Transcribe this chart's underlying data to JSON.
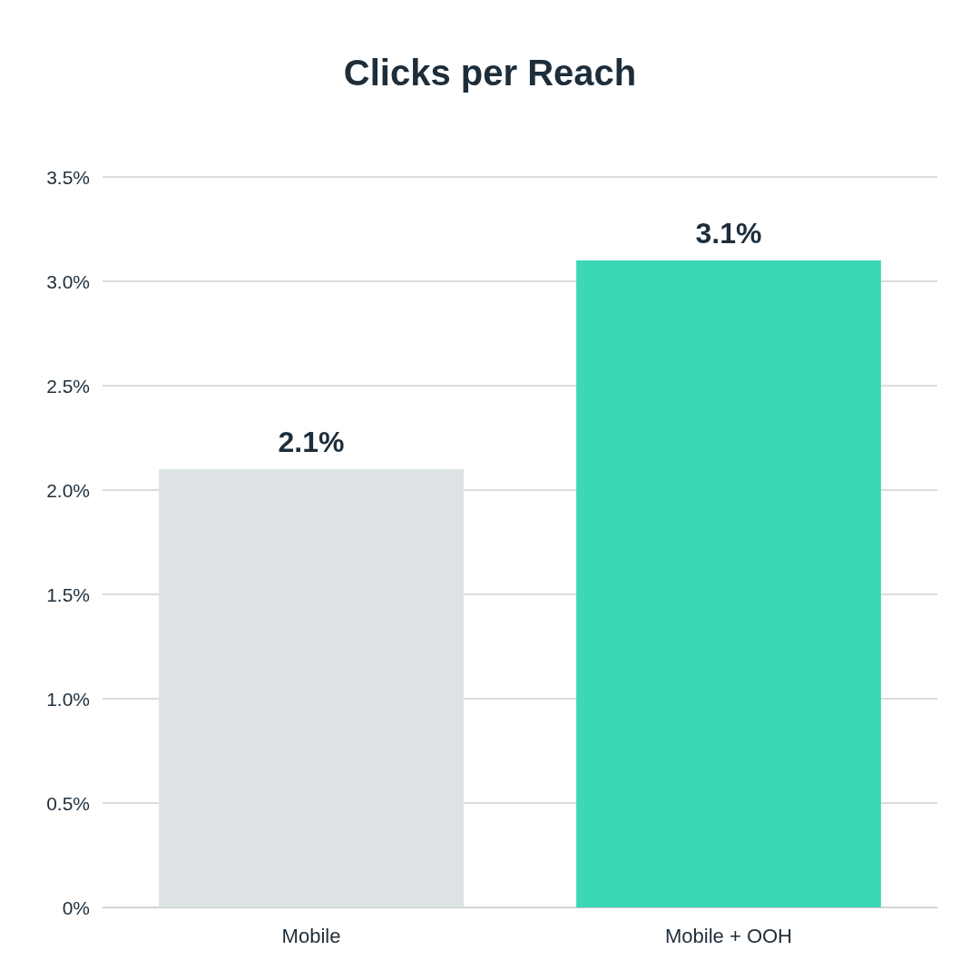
{
  "chart_data": {
    "type": "bar",
    "title": "Clicks per Reach",
    "categories": [
      "Mobile",
      "Mobile + OOH"
    ],
    "values": [
      2.1,
      3.1
    ],
    "colors": [
      "#dde3e5",
      "#3ad8b6"
    ],
    "value_labels": [
      "2.1%",
      "3.1%"
    ],
    "ylim": [
      0,
      3.5
    ],
    "yticks": [
      {
        "value": 0,
        "label": "0%"
      },
      {
        "value": 0.5,
        "label": "0.5%"
      },
      {
        "value": 1,
        "label": "1.0%"
      },
      {
        "value": 1.5,
        "label": "1.5%"
      },
      {
        "value": 2,
        "label": "2.0%"
      },
      {
        "value": 2.5,
        "label": "2.5%"
      },
      {
        "value": 3,
        "label": "3.0%"
      },
      {
        "value": 3.5,
        "label": "3.5%"
      }
    ],
    "grid": "y"
  }
}
